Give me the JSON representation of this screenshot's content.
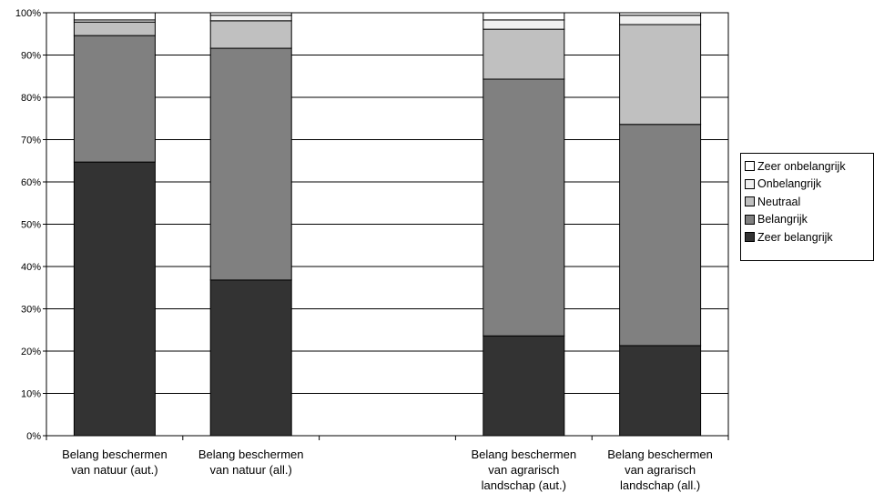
{
  "chart_data": {
    "type": "bar",
    "stacked": true,
    "categories": [
      "Belang beschermen van natuur (aut.)",
      "Belang beschermen van natuur (all.)",
      "",
      "Belang beschermen van agrarisch landschap (aut.)",
      "Belang beschermen van agrarisch landschap (all.)"
    ],
    "category_label_lines": [
      [
        "Belang beschermen",
        "van natuur (aut.)"
      ],
      [
        "Belang beschermen",
        "van natuur (all.)"
      ],
      [],
      [
        "Belang beschermen",
        "van agrarisch",
        "landschap (aut.)"
      ],
      [
        "Belang beschermen",
        "van agrarisch",
        "landschap (all.)"
      ]
    ],
    "series": [
      {
        "name": "Zeer belangrijk",
        "color": "#333333",
        "values": [
          64.7,
          36.8,
          null,
          23.6,
          21.3
        ]
      },
      {
        "name": "Belangrijk",
        "color": "#808080",
        "values": [
          29.9,
          54.8,
          null,
          60.7,
          52.3
        ]
      },
      {
        "name": "Neutraal",
        "color": "#c0c0c0",
        "values": [
          3.2,
          6.5,
          null,
          11.8,
          23.6
        ]
      },
      {
        "name": "Onbelangrijk",
        "color": "#f0f0f0",
        "values": [
          0.5,
          1.3,
          null,
          2.2,
          2.2
        ]
      },
      {
        "name": "Zeer onbelangrijk",
        "color": "#ffffff",
        "values": [
          1.7,
          0.6,
          null,
          1.7,
          0.6
        ]
      }
    ],
    "y_ticks": [
      "0%",
      "10%",
      "20%",
      "30%",
      "40%",
      "50%",
      "60%",
      "70%",
      "80%",
      "90%",
      "100%"
    ],
    "ylim": [
      0,
      100
    ],
    "grid": true,
    "legend_position": "right",
    "legend_order": [
      "Zeer onbelangrijk",
      "Onbelangrijk",
      "Neutraal",
      "Belangrijk",
      "Zeer belangrijk"
    ]
  }
}
